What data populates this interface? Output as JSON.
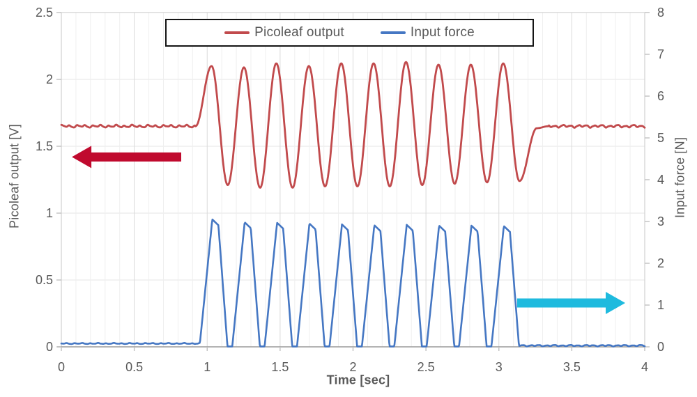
{
  "figure": {
    "background": "#ffffff",
    "text_color": "#595959"
  },
  "legend": {
    "entries": [
      {
        "label": "Picoleaf output",
        "color": "#c14a4c"
      },
      {
        "label": "Input force",
        "color": "#4577c3"
      }
    ]
  },
  "chart_data": {
    "type": "line",
    "title": "",
    "xlabel": "Time [sec]",
    "x_axis": {
      "range": [
        0,
        4
      ],
      "tick_values": [
        0,
        0.5,
        1,
        1.5,
        2,
        2.5,
        3,
        3.5,
        4
      ],
      "tick_labels": [
        "0",
        "0.5",
        "1",
        "1.5",
        "2",
        "2.5",
        "3",
        "3.5",
        "4"
      ],
      "minor_step": 0.1
    },
    "left_axis": {
      "label": "Picoleaf output [V]",
      "range": [
        0,
        2.5
      ],
      "tick_values": [
        0,
        0.5,
        1,
        1.5,
        2,
        2.5
      ],
      "tick_labels": [
        "0",
        "0.5",
        "1",
        "1.5",
        "2",
        "2.5"
      ]
    },
    "right_axis": {
      "label": "Input force [N]",
      "range": [
        0,
        8
      ],
      "tick_values": [
        0,
        1,
        2,
        3,
        4,
        5,
        6,
        7,
        8
      ],
      "tick_labels": [
        "0",
        "1",
        "2",
        "3",
        "4",
        "5",
        "6",
        "7",
        "8"
      ]
    },
    "grid": {
      "minor_vertical_color": "#efefef",
      "major_vertical_color": "#dadada",
      "horizontal_color": "#e4e4e4",
      "border_color": "#d0d0d0",
      "axis_line_color": "#9e9e9e",
      "tick_color": "#c0c0c0"
    },
    "cycles": 10,
    "series": [
      {
        "name": "Picoleaf output",
        "axis": "left",
        "color": "#c14a4c",
        "stroke_width": 2.8,
        "waveform": "sine_burst",
        "baseline_v": 1.65,
        "noise_v": 0.012,
        "burst_start_sec": 0.92,
        "period_sec": 0.2222,
        "peak_times_sec": [
          1.03,
          1.252,
          1.474,
          1.697,
          1.919,
          2.141,
          2.363,
          2.586,
          2.808,
          3.03
        ],
        "peak_values_v": [
          2.1,
          2.09,
          2.12,
          2.1,
          2.12,
          2.12,
          2.13,
          2.11,
          2.11,
          2.12
        ],
        "trough_values_v": [
          1.21,
          1.19,
          1.19,
          1.2,
          1.2,
          1.2,
          1.21,
          1.22,
          1.23,
          1.24
        ],
        "recovery_points": [
          [
            3.26,
            1.635
          ],
          [
            3.34,
            1.65
          ]
        ]
      },
      {
        "name": "Input force",
        "axis": "right",
        "color": "#4577c3",
        "stroke_width": 2.6,
        "waveform": "pulse_train",
        "baseline_before_n": 0.08,
        "baseline_after_n": 0.03,
        "pulse_bottom_n": 0.01,
        "rise_sec": 0.085,
        "plateau_sec": 0.042,
        "fall_sec": 0.062,
        "plateau_drop_n": 0.14,
        "period_sec": 0.2222,
        "peak_times_sec": [
          1.035,
          1.257,
          1.479,
          1.701,
          1.924,
          2.146,
          2.368,
          2.59,
          2.812,
          3.034
        ],
        "peak_values_n": [
          3.05,
          2.98,
          2.97,
          2.95,
          2.93,
          2.91,
          2.92,
          2.9,
          2.9,
          2.89
        ]
      }
    ],
    "annotations": [
      {
        "name": "output-direction-arrow",
        "direction": "left",
        "color": "#c00a2e",
        "axis": "left",
        "tail_sec": 0.822,
        "tip_sec": 0.072,
        "y_value": 1.42
      },
      {
        "name": "force-direction-arrow",
        "direction": "right",
        "color": "#1ebade",
        "axis": "right",
        "tail_sec": 3.125,
        "tip_sec": 3.866,
        "y_value": 1.05
      }
    ]
  }
}
